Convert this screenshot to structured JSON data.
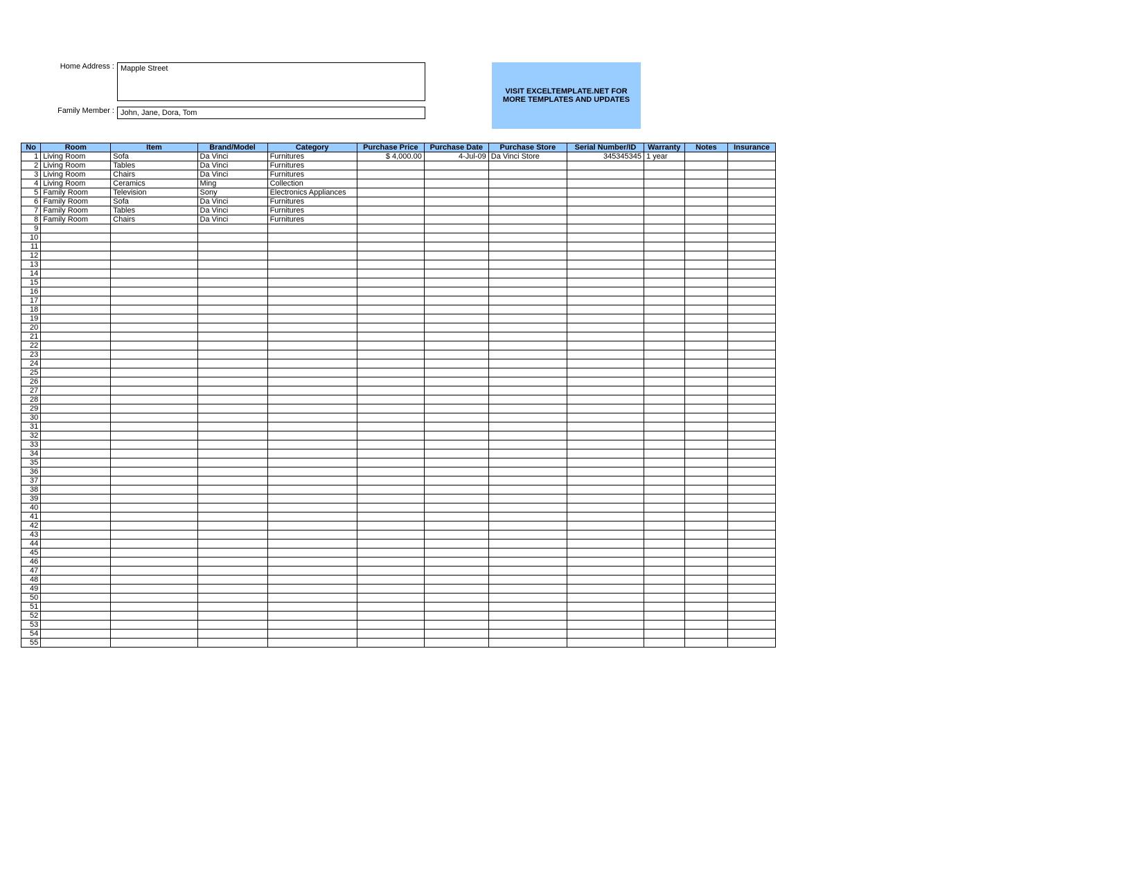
{
  "colors": {
    "header_bg": "#99ccff",
    "promo_bg": "#99ccff",
    "border": "#000000",
    "page_bg": "#ffffff",
    "text": "#000000"
  },
  "fields": {
    "address_label": "Home Address :",
    "address_value": "Mapple Street",
    "member_label": "Family Member :",
    "member_value": "John, Jane, Dora, Tom"
  },
  "promo_text": "VISIT EXCELTEMPLATE.NET FOR MORE TEMPLATES AND UPDATES",
  "table": {
    "total_rows": 55,
    "columns": [
      "No",
      "Room",
      "Item",
      "Brand/Model",
      "Category",
      "Purchase Price",
      "Purchase Date",
      "Purchase Store",
      "Serial Number/ID",
      "Warranty",
      "Notes",
      "Insurance"
    ],
    "rows": [
      {
        "no": 1,
        "room": "Living Room",
        "item": "Sofa",
        "brand": "Da Vinci",
        "category": "Furnitures",
        "price": "$       4,000.00",
        "date": "4-Jul-09",
        "store": "Da Vinci Store",
        "serial": "345345345",
        "warranty": "1 year",
        "notes": "",
        "insurance": ""
      },
      {
        "no": 2,
        "room": "Living Room",
        "item": "Tables",
        "brand": "Da Vinci",
        "category": "Furnitures",
        "price": "",
        "date": "",
        "store": "",
        "serial": "",
        "warranty": "",
        "notes": "",
        "insurance": ""
      },
      {
        "no": 3,
        "room": "Living Room",
        "item": "Chairs",
        "brand": "Da Vinci",
        "category": "Furnitures",
        "price": "",
        "date": "",
        "store": "",
        "serial": "",
        "warranty": "",
        "notes": "",
        "insurance": ""
      },
      {
        "no": 4,
        "room": "Living Room",
        "item": "Ceramics",
        "brand": "Ming",
        "category": "Collection",
        "price": "",
        "date": "",
        "store": "",
        "serial": "",
        "warranty": "",
        "notes": "",
        "insurance": ""
      },
      {
        "no": 5,
        "room": "Family Room",
        "item": "Television",
        "brand": "Sony",
        "category": "Electronics Appliances",
        "price": "",
        "date": "",
        "store": "",
        "serial": "",
        "warranty": "",
        "notes": "",
        "insurance": ""
      },
      {
        "no": 6,
        "room": "Family Room",
        "item": "Sofa",
        "brand": "Da Vinci",
        "category": "Furnitures",
        "price": "",
        "date": "",
        "store": "",
        "serial": "",
        "warranty": "",
        "notes": "",
        "insurance": ""
      },
      {
        "no": 7,
        "room": "Family Room",
        "item": "Tables",
        "brand": "Da Vinci",
        "category": "Furnitures",
        "price": "",
        "date": "",
        "store": "",
        "serial": "",
        "warranty": "",
        "notes": "",
        "insurance": ""
      },
      {
        "no": 8,
        "room": "Family Room",
        "item": "Chairs",
        "brand": "Da Vinci",
        "category": "Furnitures",
        "price": "",
        "date": "",
        "store": "",
        "serial": "",
        "warranty": "",
        "notes": "",
        "insurance": ""
      }
    ]
  }
}
